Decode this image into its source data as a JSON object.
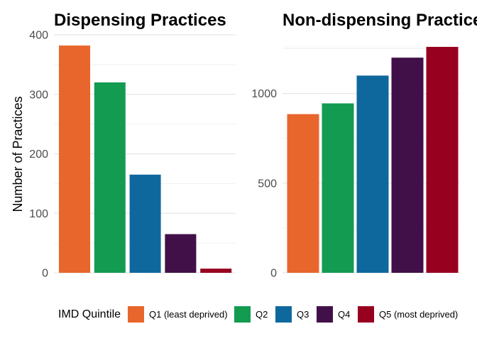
{
  "chart_data": [
    {
      "type": "bar",
      "title": "Dispensing Practices",
      "ylabel": "Number of Practices",
      "xlabel": "",
      "categories": [
        "Q1 (least deprived)",
        "Q2",
        "Q3",
        "Q4",
        "Q5 (most deprived)"
      ],
      "values": [
        382,
        320,
        165,
        65,
        7
      ],
      "ylim": [
        0,
        400
      ],
      "yticks": [
        0,
        100,
        200,
        300,
        400
      ],
      "grid": true
    },
    {
      "type": "bar",
      "title": "Non-dispensing Practices",
      "ylabel": "",
      "xlabel": "",
      "categories": [
        "Q1 (least deprived)",
        "Q2",
        "Q3",
        "Q4",
        "Q5 (most deprived)"
      ],
      "values": [
        885,
        945,
        1100,
        1200,
        1260
      ],
      "ylim": [
        0,
        1260
      ],
      "yticks": [
        0,
        500,
        1000
      ],
      "grid": true
    }
  ],
  "legend": {
    "title": "IMD Quintile",
    "position": "bottom",
    "items": [
      {
        "label": "Q1 (least deprived)",
        "color": "#E8662C"
      },
      {
        "label": "Q2",
        "color": "#139B52"
      },
      {
        "label": "Q3",
        "color": "#0E689E"
      },
      {
        "label": "Q4",
        "color": "#421048"
      },
      {
        "label": "Q5 (most deprived)",
        "color": "#980020"
      }
    ]
  }
}
